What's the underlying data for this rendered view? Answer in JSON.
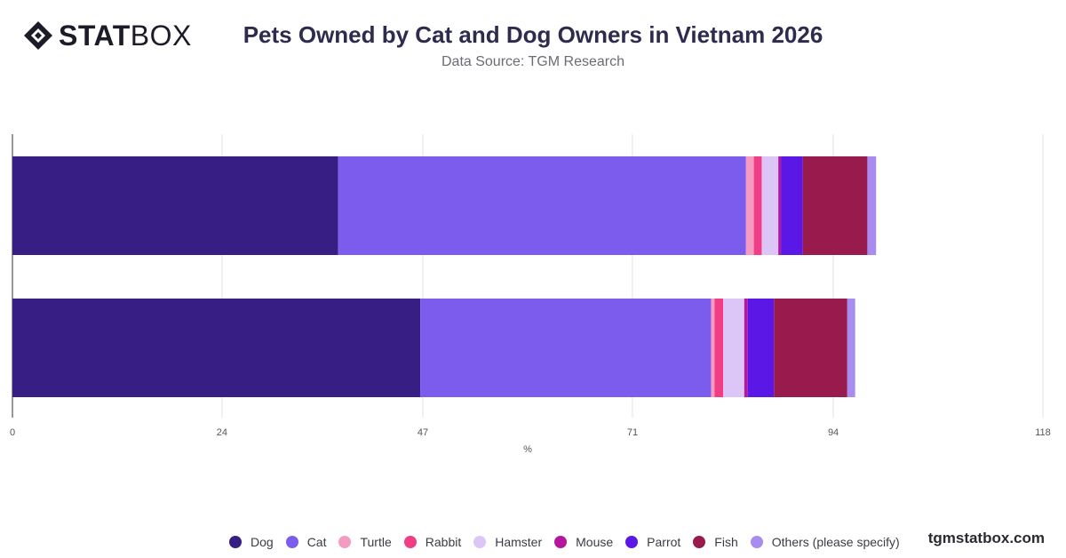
{
  "brand": {
    "logo_bold": "STAT",
    "logo_light": "BOX",
    "footer": "tgmstatbox.com"
  },
  "chart_data": {
    "type": "bar",
    "orientation": "horizontal",
    "stacked": true,
    "title": "Pets Owned by Cat and Dog Owners in Vietnam 2026",
    "subtitle": "Data Source: TGM Research",
    "xlabel": "%",
    "ylabel": "",
    "xlim": [
      0,
      118
    ],
    "xticks": [
      0,
      24,
      47,
      71,
      94,
      118
    ],
    "grid": true,
    "legend_position": "bottom",
    "categories": [
      "",
      ""
    ],
    "series": [
      {
        "name": "Dog",
        "color": "#371e85",
        "values": [
          37.3,
          46.7
        ]
      },
      {
        "name": "Cat",
        "color": "#7c5ced",
        "values": [
          46.7,
          33.3
        ]
      },
      {
        "name": "Turtle",
        "color": "#f59ac0",
        "values": [
          0.9,
          0.4
        ]
      },
      {
        "name": "Rabbit",
        "color": "#f03d86",
        "values": [
          0.9,
          1.0
        ]
      },
      {
        "name": "Hamster",
        "color": "#dcc6f8",
        "values": [
          1.9,
          2.4
        ]
      },
      {
        "name": "Mouse",
        "color": "#b4179e",
        "values": [
          0.3,
          0.4
        ]
      },
      {
        "name": "Parrot",
        "color": "#5a17e6",
        "values": [
          2.5,
          3.0
        ]
      },
      {
        "name": "Fish",
        "color": "#991a4d",
        "values": [
          7.4,
          8.4
        ]
      },
      {
        "name": "Others (please specify)",
        "color": "#a98cf0",
        "values": [
          1.0,
          0.9
        ]
      }
    ]
  }
}
